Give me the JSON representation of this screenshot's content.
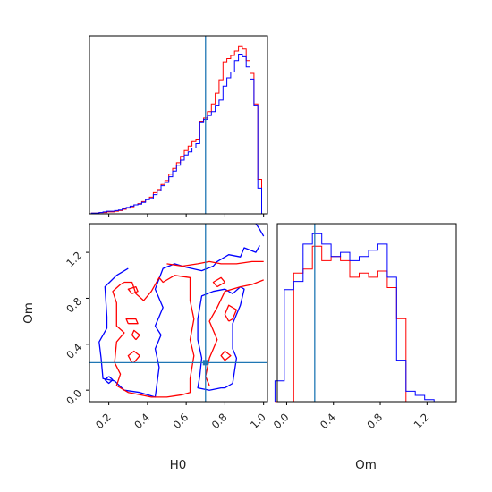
{
  "chart_data": [
    {
      "panel": "H0-marginal",
      "type": "histogram",
      "xlim": [
        0.1,
        1.02
      ],
      "bins": [
        0.12,
        0.14,
        0.16,
        0.18,
        0.2,
        0.22,
        0.24,
        0.26,
        0.28,
        0.3,
        0.32,
        0.34,
        0.36,
        0.38,
        0.4,
        0.42,
        0.44,
        0.46,
        0.48,
        0.5,
        0.52,
        0.54,
        0.56,
        0.58,
        0.6,
        0.62,
        0.64,
        0.66,
        0.68,
        0.7,
        0.72,
        0.74,
        0.76,
        0.78,
        0.8,
        0.82,
        0.84,
        0.86,
        0.88,
        0.9,
        0.92,
        0.94,
        0.96,
        0.98,
        1.0
      ],
      "series": [
        {
          "color": "#ff0000",
          "values": [
            1,
            1,
            2,
            2,
            3,
            3,
            4,
            5,
            7,
            9,
            11,
            14,
            16,
            19,
            23,
            26,
            33,
            38,
            46,
            52,
            62,
            71,
            80,
            90,
            99,
            106,
            113,
            117,
            145,
            150,
            160,
            172,
            189,
            210,
            238,
            243,
            248,
            255,
            263,
            258,
            240,
            220,
            172,
            54
          ]
        },
        {
          "color": "#0000ff",
          "values": [
            1,
            1,
            2,
            3,
            4,
            4,
            5,
            6,
            8,
            10,
            12,
            14,
            15,
            18,
            22,
            24,
            30,
            36,
            44,
            49,
            58,
            67,
            76,
            84,
            92,
            97,
            103,
            110,
            144,
            148,
            154,
            160,
            170,
            178,
            200,
            213,
            222,
            240,
            250,
            246,
            230,
            211,
            170,
            40
          ]
        }
      ],
      "vline": 0.7
    },
    {
      "panel": "H0-Om-joint",
      "type": "contour",
      "xlabel": "H0",
      "ylabel": "Om",
      "xlim": [
        0.1,
        1.02
      ],
      "ylim": [
        -0.1,
        1.45
      ],
      "xticks": [
        "0.2",
        "0.4",
        "0.6",
        "0.8",
        "1.0"
      ],
      "yticks": [
        "0.0",
        "0.4",
        "0.8",
        "1.2"
      ],
      "crosshair": {
        "x": 0.7,
        "y": 0.24
      },
      "series": [
        {
          "color": "#0000ff",
          "contours": [
            [
              [
                0.3,
                1.06
              ],
              [
                0.24,
                1.0
              ],
              [
                0.18,
                0.9
              ],
              [
                0.19,
                0.64
              ],
              [
                0.19,
                0.54
              ],
              [
                0.15,
                0.42
              ],
              [
                0.16,
                0.28
              ],
              [
                0.17,
                0.1
              ],
              [
                0.23,
                0.08
              ],
              [
                0.28,
                0.0
              ],
              [
                0.36,
                -0.02
              ],
              [
                0.44,
                -0.06
              ],
              [
                0.46,
                0.2
              ],
              [
                0.44,
                0.36
              ],
              [
                0.47,
                0.48
              ],
              [
                0.44,
                0.56
              ],
              [
                0.46,
                0.64
              ],
              [
                0.48,
                0.72
              ],
              [
                0.44,
                0.88
              ],
              [
                0.48,
                1.06
              ],
              [
                0.54,
                1.1
              ],
              [
                0.6,
                1.07
              ],
              [
                0.68,
                1.04
              ],
              [
                0.74,
                1.08
              ],
              [
                0.76,
                1.12
              ],
              [
                0.82,
                1.18
              ],
              [
                0.88,
                1.16
              ],
              [
                0.9,
                1.24
              ],
              [
                0.96,
                1.2
              ],
              [
                0.98,
                1.26
              ]
            ],
            [
              [
                1.0,
                1.34
              ],
              [
                0.98,
                1.4
              ],
              [
                0.96,
                1.45
              ]
            ],
            [
              [
                0.78,
                0.02
              ],
              [
                0.72,
                0.0
              ],
              [
                0.66,
                0.02
              ],
              [
                0.67,
                0.12
              ],
              [
                0.68,
                0.28
              ],
              [
                0.66,
                0.44
              ],
              [
                0.66,
                0.62
              ],
              [
                0.68,
                0.82
              ],
              [
                0.74,
                0.86
              ],
              [
                0.8,
                0.88
              ],
              [
                0.84,
                0.84
              ],
              [
                0.88,
                0.9
              ],
              [
                0.9,
                0.88
              ],
              [
                0.88,
                0.74
              ],
              [
                0.84,
                0.58
              ],
              [
                0.84,
                0.36
              ],
              [
                0.86,
                0.28
              ],
              [
                0.84,
                0.06
              ],
              [
                0.8,
                0.02
              ],
              [
                0.78,
                0.02
              ]
            ],
            [
              [
                0.2,
                0.12
              ],
              [
                0.18,
                0.09
              ],
              [
                0.2,
                0.06
              ],
              [
                0.22,
                0.09
              ],
              [
                0.2,
                0.12
              ]
            ]
          ]
        },
        {
          "color": "#ff0000",
          "contours": [
            [
              [
                0.5,
                1.1
              ],
              [
                0.58,
                1.08
              ],
              [
                0.66,
                1.1
              ],
              [
                0.72,
                1.12
              ],
              [
                0.78,
                1.1
              ],
              [
                0.86,
                1.1
              ],
              [
                0.94,
                1.12
              ],
              [
                1.0,
                1.12
              ]
            ],
            [
              [
                0.28,
                0.94
              ],
              [
                0.26,
                0.92
              ],
              [
                0.22,
                0.86
              ],
              [
                0.24,
                0.76
              ],
              [
                0.24,
                0.64
              ],
              [
                0.24,
                0.56
              ],
              [
                0.28,
                0.5
              ],
              [
                0.24,
                0.42
              ],
              [
                0.23,
                0.24
              ],
              [
                0.26,
                0.14
              ],
              [
                0.24,
                0.04
              ],
              [
                0.3,
                -0.02
              ],
              [
                0.36,
                -0.04
              ],
              [
                0.42,
                -0.06
              ],
              [
                0.5,
                -0.06
              ],
              [
                0.58,
                -0.04
              ],
              [
                0.62,
                -0.02
              ],
              [
                0.62,
                0.1
              ],
              [
                0.64,
                0.3
              ],
              [
                0.62,
                0.44
              ],
              [
                0.64,
                0.62
              ],
              [
                0.62,
                0.78
              ],
              [
                0.62,
                0.98
              ],
              [
                0.54,
                1.0
              ],
              [
                0.48,
                0.94
              ],
              [
                0.46,
                0.98
              ],
              [
                0.42,
                0.86
              ],
              [
                0.38,
                0.78
              ],
              [
                0.34,
                0.84
              ],
              [
                0.32,
                0.94
              ],
              [
                0.28,
                0.94
              ]
            ],
            [
              [
                0.72,
                0.04
              ],
              [
                0.7,
                0.12
              ],
              [
                0.72,
                0.28
              ],
              [
                0.76,
                0.44
              ],
              [
                0.72,
                0.6
              ],
              [
                0.76,
                0.72
              ],
              [
                0.8,
                0.86
              ],
              [
                0.88,
                0.9
              ],
              [
                0.94,
                0.92
              ],
              [
                1.0,
                0.96
              ]
            ],
            [
              [
                0.32,
                0.24
              ],
              [
                0.3,
                0.3
              ],
              [
                0.33,
                0.34
              ],
              [
                0.36,
                0.3
              ],
              [
                0.33,
                0.24
              ],
              [
                0.32,
                0.24
              ]
            ],
            [
              [
                0.34,
                0.44
              ],
              [
                0.32,
                0.48
              ],
              [
                0.33,
                0.52
              ],
              [
                0.36,
                0.48
              ],
              [
                0.34,
                0.44
              ]
            ],
            [
              [
                0.3,
                0.58
              ],
              [
                0.29,
                0.62
              ],
              [
                0.34,
                0.62
              ],
              [
                0.35,
                0.58
              ],
              [
                0.3,
                0.58
              ]
            ],
            [
              [
                0.32,
                0.84
              ],
              [
                0.3,
                0.88
              ],
              [
                0.34,
                0.9
              ],
              [
                0.35,
                0.86
              ],
              [
                0.32,
                0.84
              ]
            ],
            [
              [
                0.8,
                0.26
              ],
              [
                0.78,
                0.3
              ],
              [
                0.8,
                0.34
              ],
              [
                0.83,
                0.3
              ],
              [
                0.8,
                0.26
              ]
            ],
            [
              [
                0.82,
                0.6
              ],
              [
                0.8,
                0.66
              ],
              [
                0.82,
                0.74
              ],
              [
                0.86,
                0.7
              ],
              [
                0.84,
                0.62
              ],
              [
                0.82,
                0.6
              ]
            ],
            [
              [
                0.76,
                0.9
              ],
              [
                0.74,
                0.94
              ],
              [
                0.78,
                0.98
              ],
              [
                0.8,
                0.94
              ],
              [
                0.76,
                0.9
              ]
            ]
          ]
        }
      ]
    },
    {
      "panel": "Om-marginal",
      "type": "histogram",
      "xlabel": "Om",
      "xlim": [
        -0.08,
        1.45
      ],
      "xticks": [
        "0.0",
        "0.4",
        "0.8",
        "1.2"
      ],
      "bins": [
        -0.06,
        0.02,
        0.1,
        0.18,
        0.26,
        0.34,
        0.42,
        0.5,
        0.58,
        0.66,
        0.74,
        0.82,
        0.9,
        0.98,
        1.06,
        1.14,
        1.22,
        1.3,
        1.38
      ],
      "series": [
        {
          "color": "#ff0000",
          "values": [
            0,
            0,
            62,
            64,
            75,
            68,
            70,
            68,
            60,
            62,
            60,
            63,
            55,
            40,
            0,
            0,
            0,
            0
          ]
        },
        {
          "color": "#0000ff",
          "values": [
            10,
            54,
            58,
            76,
            81,
            76,
            70,
            72,
            68,
            70,
            73,
            76,
            60,
            20,
            5,
            3,
            1,
            0
          ]
        }
      ],
      "vline": 0.24
    }
  ]
}
